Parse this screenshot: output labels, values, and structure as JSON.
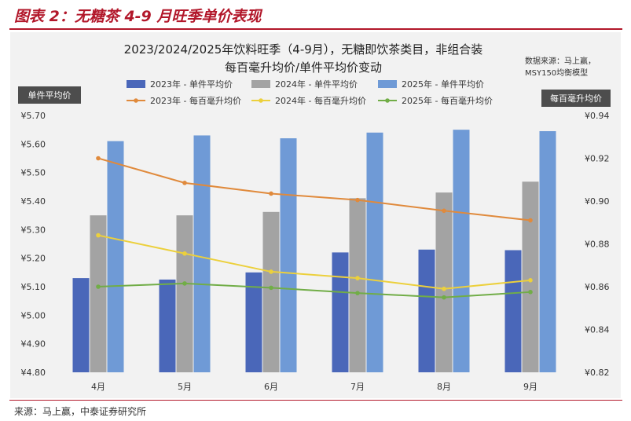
{
  "figure": {
    "caption": "图表 2：无糖茶 4-9 月旺季单价表现",
    "source": "来源：马上赢，中泰证券研究所"
  },
  "chart_data": {
    "type": "bar+line",
    "title_line1": "2023/2024/2025年饮料旺季（4-9月），无糖即饮茶类目，非组合装",
    "title_line2": "每百毫升均价/单件平均价变动",
    "note_line1": "数据来源：马上赢，",
    "note_line2": "MSY150均衡模型",
    "left_axis_label": "单件平均价",
    "right_axis_label": "每百毫升均价",
    "categories": [
      "4月",
      "5月",
      "6月",
      "7月",
      "8月",
      "9月"
    ],
    "left_ylim": [
      4.8,
      5.7
    ],
    "left_ticks": [
      "¥5.70",
      "¥5.60",
      "¥5.50",
      "¥5.40",
      "¥5.30",
      "¥5.20",
      "¥5.10",
      "¥5.00",
      "¥4.90",
      "¥4.80"
    ],
    "right_ylim": [
      0.82,
      0.94
    ],
    "right_ticks": [
      "¥0.94",
      "¥0.92",
      "¥0.90",
      "¥0.88",
      "¥0.86",
      "¥0.84",
      "¥0.82"
    ],
    "bar_series": [
      {
        "name": "2023年 - 单件平均价",
        "color": "#4a67b9",
        "values": [
          5.13,
          5.125,
          5.15,
          5.22,
          5.23,
          5.228
        ]
      },
      {
        "name": "2024年 - 单件平均价",
        "color": "#a3a3a3",
        "values": [
          5.35,
          5.35,
          5.362,
          5.41,
          5.43,
          5.468
        ]
      },
      {
        "name": "2025年 - 单件平均价",
        "color": "#6f9ad6",
        "values": [
          5.61,
          5.63,
          5.62,
          5.64,
          5.65,
          5.645
        ]
      }
    ],
    "line_series": [
      {
        "name": "2023年 - 每百毫升均价",
        "color": "#e08a3c",
        "values": [
          0.92,
          0.9085,
          0.9035,
          0.9005,
          0.8955,
          0.891
        ]
      },
      {
        "name": "2024年 - 每百毫升均价",
        "color": "#ecd03c",
        "values": [
          0.884,
          0.8755,
          0.867,
          0.864,
          0.859,
          0.863
        ]
      },
      {
        "name": "2025年 - 每百毫升均价",
        "color": "#71ad47",
        "values": [
          0.86,
          0.8615,
          0.8595,
          0.857,
          0.855,
          0.8575
        ]
      }
    ],
    "grid": false,
    "legend_position": "top"
  }
}
